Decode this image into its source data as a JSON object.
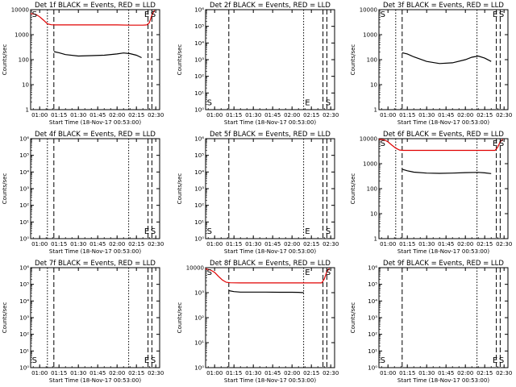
{
  "figure": {
    "panel_title_suffix": "BLACK = Events, RED = LLD",
    "xlabel": "Start Time (18-Nov-17 00:53:00)",
    "ylabel": "Counts/sec"
  },
  "colors": {
    "events": "#000000",
    "lld": "#e00000",
    "axes": "#000000"
  },
  "chart_data": [
    {
      "type": "line",
      "title": "Det 1f BLACK = Events, RED = LLD",
      "xlim": [
        "00:53",
        "02:33"
      ],
      "ylim": [
        1,
        10000
      ],
      "yscale": "log",
      "x_ticks": [
        "01:00",
        "01:15",
        "01:30",
        "01:45",
        "02:00",
        "02:15",
        "02:30"
      ],
      "y_ticks": [
        "1",
        "10",
        "100",
        "1000",
        "10000"
      ],
      "vlines": {
        "dotted": [
          "01:06",
          "02:09"
        ],
        "dashed": [
          "01:11",
          "02:24",
          "02:27"
        ]
      },
      "markers": [
        {
          "label": "S",
          "x": "00:56",
          "y": 10000
        },
        {
          "label": "E",
          "x": "02:23",
          "y": 10000
        },
        {
          "label": "S",
          "x": "02:28",
          "y": 10000
        }
      ],
      "series": [
        {
          "name": "LLD",
          "color": "red",
          "x": [
            "00:53",
            "00:57",
            "01:00",
            "01:03",
            "01:06",
            "01:09",
            "01:12",
            "01:20",
            "01:30",
            "01:45",
            "02:00",
            "02:10",
            "02:15",
            "02:20",
            "02:23",
            "02:25",
            "02:27",
            "02:29"
          ],
          "values": [
            7000,
            6500,
            5200,
            3800,
            2700,
            2500,
            2450,
            2450,
            2450,
            2450,
            2450,
            2400,
            2400,
            2400,
            2450,
            3000,
            6000,
            9500
          ]
        },
        {
          "name": "Events",
          "color": "black",
          "x": [
            "01:11",
            "01:15",
            "01:20",
            "01:30",
            "01:40",
            "01:50",
            "02:00",
            "02:05",
            "02:10",
            "02:15",
            "02:19"
          ],
          "values": [
            210,
            190,
            160,
            140,
            145,
            150,
            170,
            185,
            175,
            150,
            120
          ]
        }
      ]
    },
    {
      "type": "line",
      "title": "Det 2f BLACK = Events, RED = LLD",
      "xlim": [
        "00:53",
        "02:33"
      ],
      "ylim": [
        1,
        10000000
      ],
      "yscale": "log",
      "x_ticks": [
        "01:00",
        "01:15",
        "01:30",
        "01:45",
        "02:00",
        "02:15",
        "02:30"
      ],
      "y_ticks": [
        "10⁰",
        "10¹",
        "10²",
        "10³",
        "10⁴",
        "10⁵",
        "10⁶"
      ],
      "vlines": {
        "dotted": [
          "02:09"
        ],
        "dashed": [
          "01:11",
          "02:24",
          "02:27"
        ]
      },
      "markers": [
        {
          "label": "S",
          "x": "00:56",
          "y": 2
        },
        {
          "label": "E",
          "x": "02:12",
          "y": 2
        },
        {
          "label": "S",
          "x": "02:28",
          "y": 2
        }
      ],
      "series": []
    },
    {
      "type": "line",
      "title": "Det 3f BLACK = Events, RED = LLD",
      "xlim": [
        "00:53",
        "02:33"
      ],
      "ylim": [
        1,
        10000
      ],
      "yscale": "log",
      "x_ticks": [
        "01:00",
        "01:15",
        "01:30",
        "01:45",
        "02:00",
        "02:15",
        "02:30"
      ],
      "y_ticks": [
        "1",
        "10",
        "100",
        "1000",
        "10000"
      ],
      "vlines": {
        "dotted": [
          "01:06",
          "02:09"
        ],
        "dashed": [
          "01:11",
          "02:24",
          "02:27"
        ]
      },
      "markers": [
        {
          "label": "S",
          "x": "00:56",
          "y": 10000
        },
        {
          "label": "E",
          "x": "02:23",
          "y": 10000
        },
        {
          "label": "S",
          "x": "02:28",
          "y": 10000
        }
      ],
      "series": [
        {
          "name": "Events",
          "color": "black",
          "x": [
            "01:11",
            "01:15",
            "01:20",
            "01:30",
            "01:40",
            "01:50",
            "02:00",
            "02:05",
            "02:10",
            "02:15",
            "02:20"
          ],
          "values": [
            190,
            170,
            130,
            85,
            70,
            75,
            100,
            125,
            140,
            115,
            85
          ]
        }
      ]
    },
    {
      "type": "line",
      "title": "Det 4f BLACK = Events, RED = LLD",
      "xlim": [
        "00:53",
        "02:33"
      ],
      "ylim": [
        1,
        1000000
      ],
      "yscale": "log",
      "x_ticks": [
        "01:00",
        "01:15",
        "01:30",
        "01:45",
        "02:00",
        "02:15",
        "02:30"
      ],
      "y_ticks": [
        "10⁰",
        "10¹",
        "10²",
        "10³",
        "10⁴",
        "10⁵",
        "10⁶"
      ],
      "vlines": {
        "dotted": [
          "01:06",
          "02:09"
        ],
        "dashed": [
          "01:11",
          "02:24",
          "02:27"
        ]
      },
      "markers": [
        {
          "label": "E",
          "x": "02:23",
          "y": 2
        },
        {
          "label": "S",
          "x": "02:28",
          "y": 2
        }
      ],
      "series": []
    },
    {
      "type": "line",
      "title": "Det 5f BLACK = Events, RED = LLD",
      "xlim": [
        "00:53",
        "02:33"
      ],
      "ylim": [
        1,
        1000000
      ],
      "yscale": "log",
      "x_ticks": [
        "01:00",
        "01:15",
        "01:30",
        "01:45",
        "02:00",
        "02:15",
        "02:30"
      ],
      "y_ticks": [
        "10⁰",
        "10¹",
        "10²",
        "10³",
        "10⁴",
        "10⁵",
        "10⁶"
      ],
      "vlines": {
        "dotted": [
          "02:09"
        ],
        "dashed": [
          "01:11",
          "02:24",
          "02:27"
        ]
      },
      "markers": [
        {
          "label": "S",
          "x": "00:56",
          "y": 2
        },
        {
          "label": "E",
          "x": "02:12",
          "y": 2
        },
        {
          "label": "S",
          "x": "02:28",
          "y": 2
        }
      ],
      "series": []
    },
    {
      "type": "line",
      "title": "Det 6f BLACK = Events, RED = LLD",
      "xlim": [
        "00:53",
        "02:33"
      ],
      "ylim": [
        1,
        10000
      ],
      "yscale": "log",
      "x_ticks": [
        "01:00",
        "01:15",
        "01:30",
        "01:45",
        "02:00",
        "02:15",
        "02:30"
      ],
      "y_ticks": [
        "1",
        "10",
        "100",
        "1000",
        "10000"
      ],
      "vlines": {
        "dotted": [
          "01:06",
          "02:09"
        ],
        "dashed": [
          "01:11",
          "02:24",
          "02:27"
        ]
      },
      "markers": [
        {
          "label": "S",
          "x": "00:56",
          "y": 10000
        },
        {
          "label": "E",
          "x": "02:23",
          "y": 10000
        },
        {
          "label": "S",
          "x": "02:28",
          "y": 10000
        }
      ],
      "series": [
        {
          "name": "LLD",
          "color": "red",
          "x": [
            "00:53",
            "00:57",
            "01:00",
            "01:03",
            "01:06",
            "01:09",
            "01:12",
            "01:20",
            "01:30",
            "01:45",
            "02:00",
            "02:15",
            "02:23",
            "02:25",
            "02:27",
            "02:29"
          ],
          "values": [
            9500,
            9000,
            7500,
            5500,
            4200,
            3500,
            3400,
            3400,
            3400,
            3400,
            3400,
            3400,
            3400,
            4500,
            7500,
            9500
          ]
        },
        {
          "name": "Events",
          "color": "black",
          "x": [
            "01:11",
            "01:15",
            "01:20",
            "01:30",
            "01:40",
            "01:50",
            "02:00",
            "02:10",
            "02:15",
            "02:20"
          ],
          "values": [
            600,
            520,
            460,
            420,
            410,
            420,
            440,
            450,
            430,
            400
          ]
        }
      ]
    },
    {
      "type": "line",
      "title": "Det 7f BLACK = Events, RED = LLD",
      "xlim": [
        "00:53",
        "02:33"
      ],
      "ylim": [
        1,
        1000000
      ],
      "yscale": "log",
      "x_ticks": [
        "01:00",
        "01:15",
        "01:30",
        "01:45",
        "02:00",
        "02:15",
        "02:30"
      ],
      "y_ticks": [
        "10⁰",
        "10¹",
        "10²",
        "10³",
        "10⁴",
        "10⁵",
        "10⁶"
      ],
      "vlines": {
        "dotted": [
          "01:06",
          "02:09"
        ],
        "dashed": [
          "01:11",
          "02:24",
          "02:27"
        ]
      },
      "markers": [
        {
          "label": "S",
          "x": "00:56",
          "y": 2
        },
        {
          "label": "E",
          "x": "02:23",
          "y": 2
        },
        {
          "label": "S",
          "x": "02:28",
          "y": 2
        }
      ],
      "series": []
    },
    {
      "type": "line",
      "title": "Det 8f BLACK = Events, RED = LLD",
      "xlim": [
        "00:53",
        "02:33"
      ],
      "ylim": [
        1,
        10000
      ],
      "yscale": "log",
      "x_ticks": [
        "01:00",
        "01:15",
        "01:30",
        "01:45",
        "02:00",
        "02:15",
        "02:30"
      ],
      "y_ticks": [
        "10⁰",
        "10¹",
        "10²",
        "10³",
        "10000"
      ],
      "vlines": {
        "dotted": [
          "02:09"
        ],
        "dashed": [
          "01:11",
          "02:24",
          "02:27"
        ]
      },
      "markers": [
        {
          "label": "S",
          "x": "00:56",
          "y": 10000
        },
        {
          "label": "E",
          "x": "02:12",
          "y": 10000
        },
        {
          "label": "S",
          "x": "02:28",
          "y": 10000
        }
      ],
      "series": [
        {
          "name": "LLD",
          "color": "red",
          "x": [
            "00:53",
            "00:57",
            "01:00",
            "01:03",
            "01:06",
            "01:09",
            "01:12",
            "01:20",
            "01:30",
            "01:45",
            "02:00",
            "02:15",
            "02:23",
            "02:25",
            "02:27",
            "02:29"
          ],
          "values": [
            9000,
            8000,
            6500,
            4500,
            3200,
            2600,
            2500,
            2450,
            2450,
            2450,
            2450,
            2450,
            2450,
            3500,
            7000,
            9500
          ]
        },
        {
          "name": "Events",
          "color": "black",
          "x": [
            "01:11",
            "01:15",
            "01:20",
            "01:30",
            "01:40",
            "01:50",
            "02:00",
            "02:05",
            "02:09"
          ],
          "values": [
            1200,
            1100,
            1050,
            1050,
            1050,
            1040,
            1040,
            1030,
            1000
          ]
        }
      ]
    },
    {
      "type": "line",
      "title": "Det 9f BLACK = Events, RED = LLD",
      "xlim": [
        "00:53",
        "02:33"
      ],
      "ylim": [
        1,
        1000000
      ],
      "yscale": "log",
      "x_ticks": [
        "01:00",
        "01:15",
        "01:30",
        "01:45",
        "02:00",
        "02:15",
        "02:30"
      ],
      "y_ticks": [
        "10⁰",
        "10¹",
        "10²",
        "10³",
        "10⁴",
        "10⁵",
        "10⁶"
      ],
      "vlines": {
        "dotted": [
          "02:09"
        ],
        "dashed": [
          "01:11",
          "02:24",
          "02:27"
        ]
      },
      "markers": [
        {
          "label": "S",
          "x": "00:56",
          "y": 2
        },
        {
          "label": "E",
          "x": "02:23",
          "y": 2
        },
        {
          "label": "S",
          "x": "02:28",
          "y": 2
        }
      ],
      "series": []
    }
  ]
}
